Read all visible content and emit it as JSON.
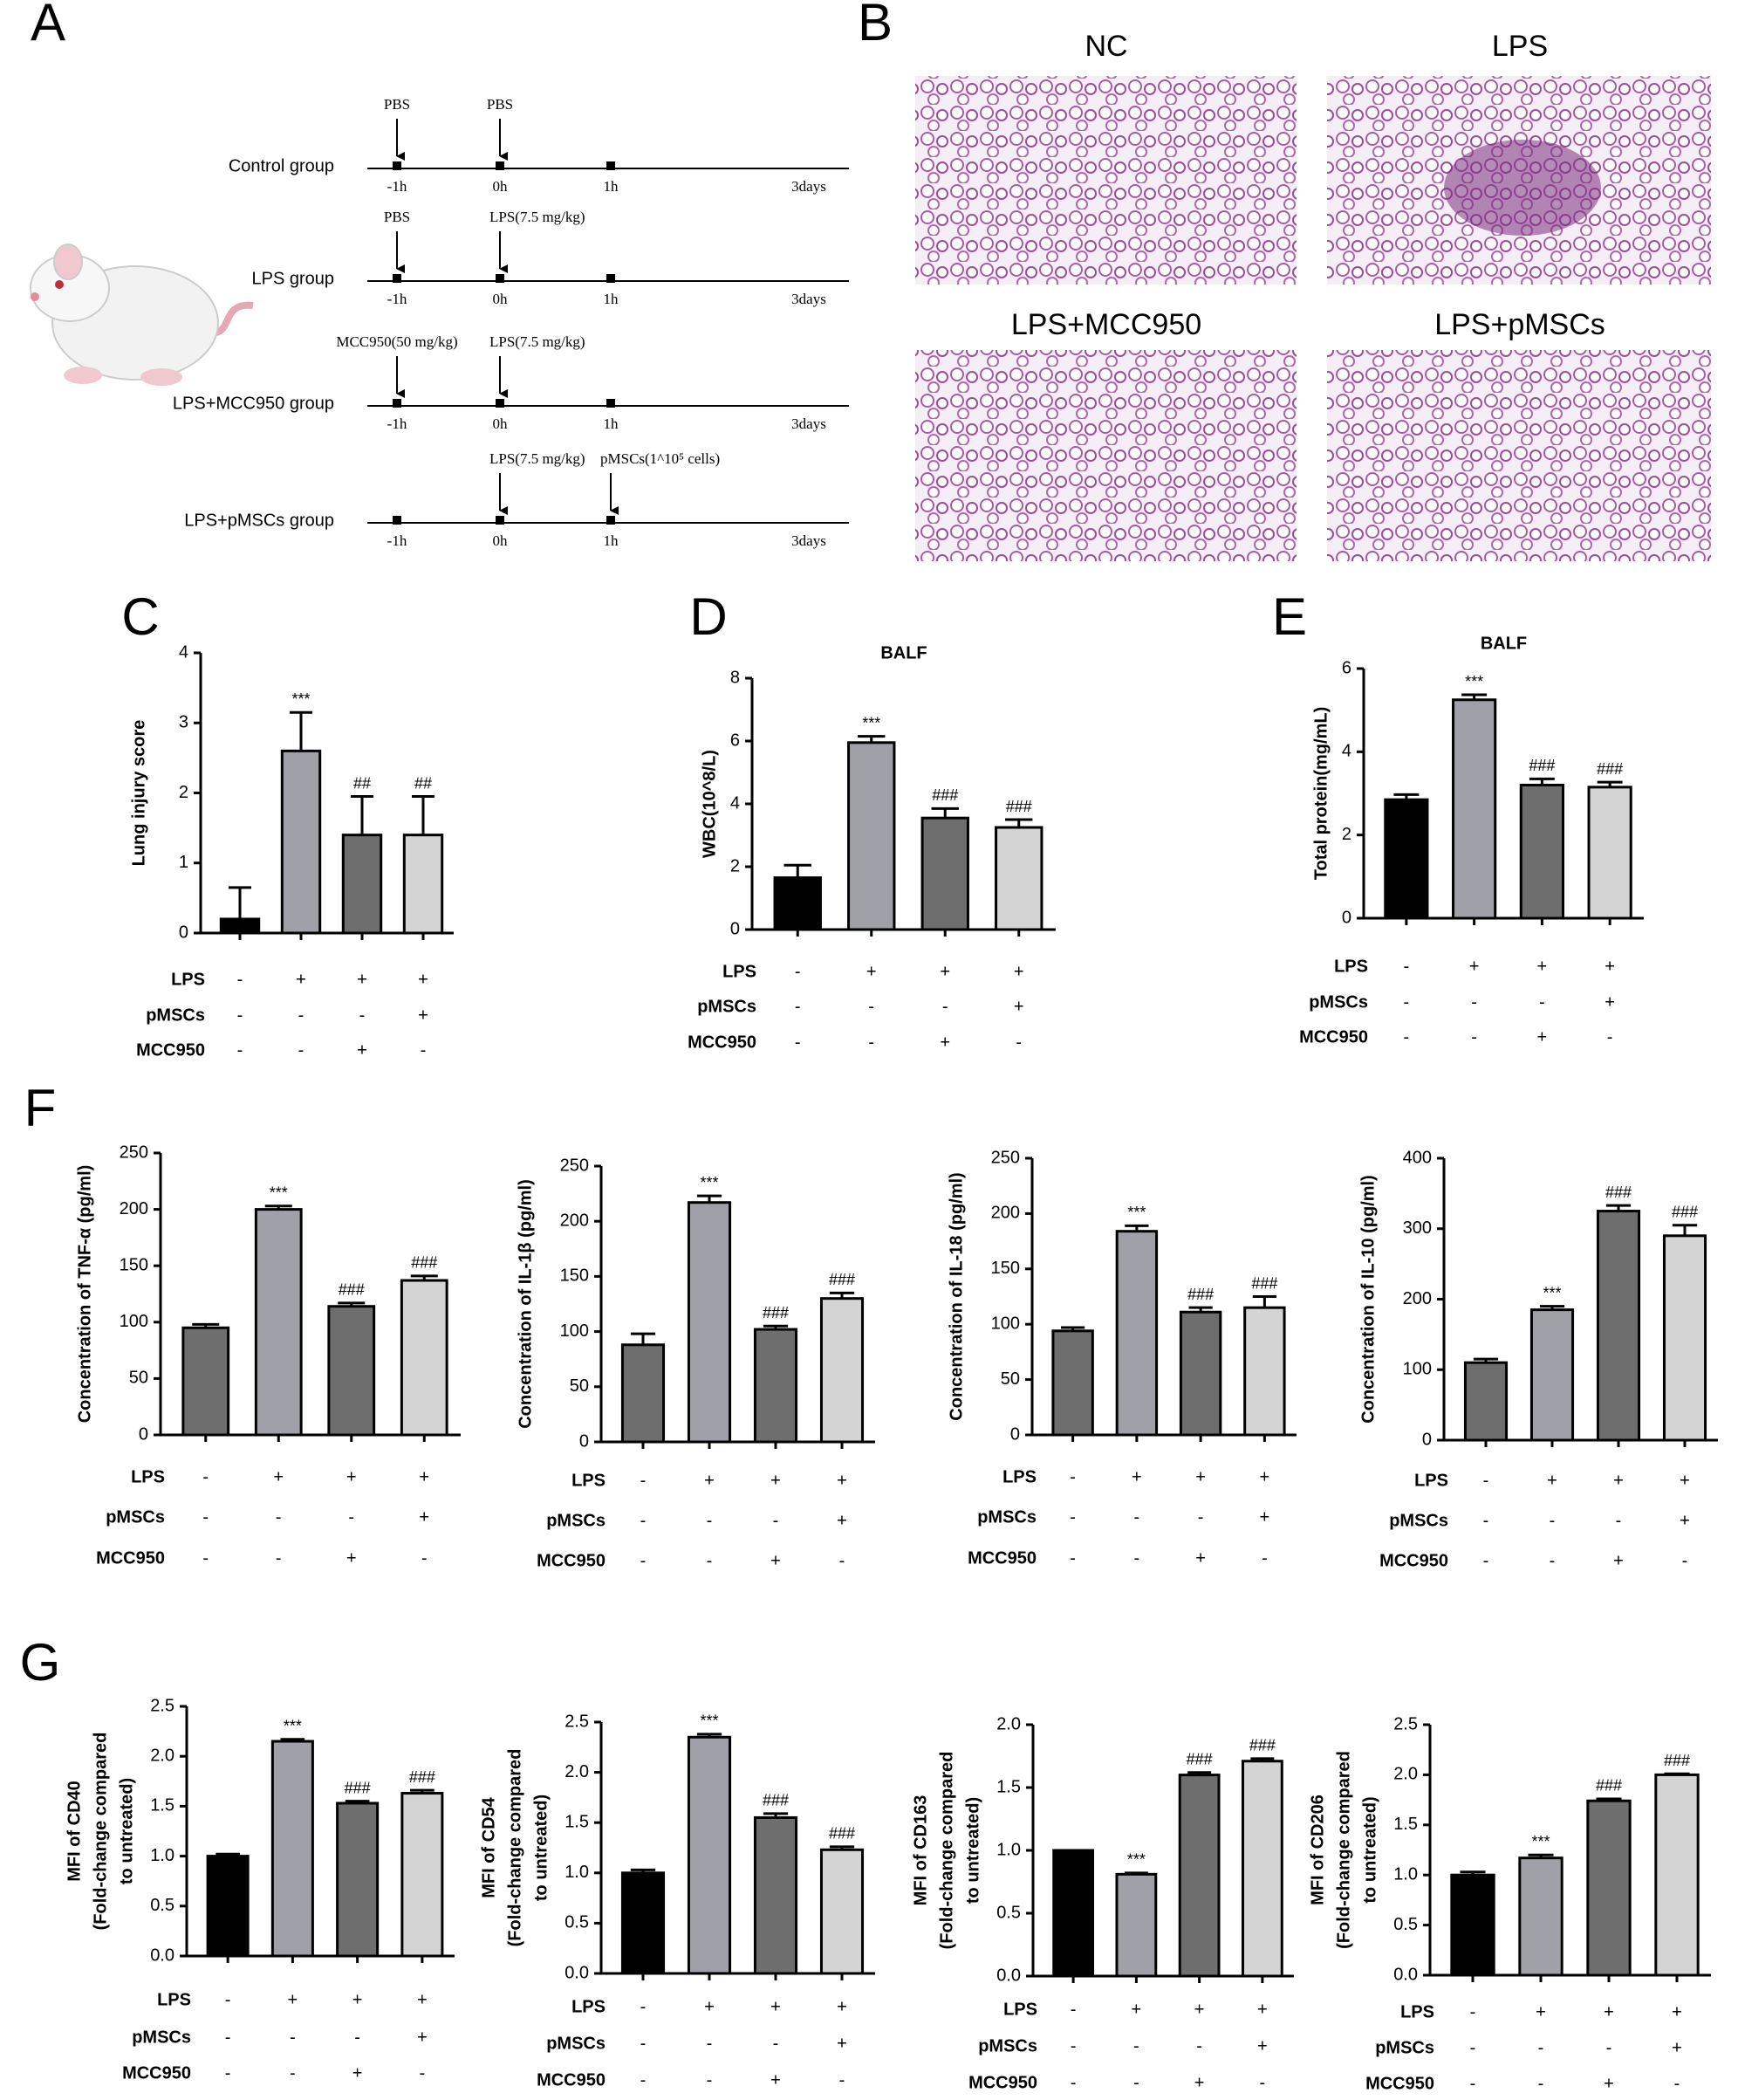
{
  "panel_labels": [
    "A",
    "B",
    "C",
    "D",
    "E",
    "F",
    "G"
  ],
  "timeline": {
    "times": [
      "-1h",
      "0h",
      "1h",
      "3days"
    ],
    "groups": [
      {
        "label": "Control group",
        "doses": [
          "PBS",
          "PBS",
          null
        ]
      },
      {
        "label": "LPS group",
        "doses": [
          "PBS",
          "LPS(7.5 mg/kg)",
          null
        ]
      },
      {
        "label": "LPS+MCC950 group",
        "doses": [
          "MCC950(50 mg/kg)",
          "LPS(7.5 mg/kg)",
          null
        ]
      },
      {
        "label": "LPS+pMSCs group",
        "doses": [
          null,
          "LPS(7.5 mg/kg)",
          "pMSCs(1^10⁵ cells)"
        ]
      }
    ]
  },
  "histology": {
    "panels": [
      "NC",
      "LPS",
      "LPS+MCC950",
      "LPS+pMSCs"
    ]
  },
  "chart_data": [
    {
      "type": "bar",
      "ylabel": [
        "Lung injury score"
      ],
      "values": [
        0.2,
        2.6,
        1.4,
        1.4
      ],
      "errors": [
        0.45,
        0.55,
        0.55,
        0.55
      ],
      "annotations": [
        null,
        "***",
        "##",
        "##"
      ],
      "colors": [
        "#000000",
        "#a0a0a8",
        "#6e6e6e",
        "#d4d4d4"
      ],
      "ylim": [
        0,
        4
      ],
      "yticks": [
        0,
        1,
        2,
        3,
        4
      ],
      "treatments": [
        {
          "name": "LPS",
          "marks": [
            "-",
            "+",
            "+",
            "+"
          ]
        },
        {
          "name": "pMSCs",
          "marks": [
            "-",
            "-",
            "-",
            "+"
          ]
        },
        {
          "name": "MCC950",
          "marks": [
            "-",
            "-",
            "+",
            "-"
          ]
        }
      ]
    },
    {
      "type": "bar",
      "title": "BALF",
      "ylabel": [
        "WBC(10^8/L)"
      ],
      "values": [
        1.65,
        5.95,
        3.55,
        3.25
      ],
      "errors": [
        0.4,
        0.2,
        0.3,
        0.25
      ],
      "annotations": [
        null,
        "***",
        "###",
        "###"
      ],
      "colors": [
        "#000000",
        "#a0a0a8",
        "#6e6e6e",
        "#d4d4d4"
      ],
      "ylim": [
        0,
        8
      ],
      "yticks": [
        0,
        2,
        4,
        6,
        8
      ],
      "treatments": [
        {
          "name": "LPS",
          "marks": [
            "-",
            "+",
            "+",
            "+"
          ]
        },
        {
          "name": "pMSCs",
          "marks": [
            "-",
            "-",
            "-",
            "+"
          ]
        },
        {
          "name": "MCC950",
          "marks": [
            "-",
            "-",
            "+",
            "-"
          ]
        }
      ]
    },
    {
      "type": "bar",
      "title": "BALF",
      "ylabel": [
        "Total protein(mg/mL)"
      ],
      "values": [
        2.85,
        5.25,
        3.2,
        3.15
      ],
      "errors": [
        0.12,
        0.12,
        0.15,
        0.12
      ],
      "annotations": [
        null,
        "***",
        "###",
        "###"
      ],
      "colors": [
        "#000000",
        "#a0a0a8",
        "#6e6e6e",
        "#d4d4d4"
      ],
      "ylim": [
        0,
        6
      ],
      "yticks": [
        0,
        2,
        4,
        6
      ],
      "treatments": [
        {
          "name": "LPS",
          "marks": [
            "-",
            "+",
            "+",
            "+"
          ]
        },
        {
          "name": "pMSCs",
          "marks": [
            "-",
            "-",
            "-",
            "+"
          ]
        },
        {
          "name": "MCC950",
          "marks": [
            "-",
            "-",
            "+",
            "-"
          ]
        }
      ]
    },
    {
      "type": "bar",
      "ylabel": [
        "Concentration of TNF-α (pg/ml)"
      ],
      "values": [
        95,
        200,
        114,
        137
      ],
      "errors": [
        3,
        3,
        3,
        4
      ],
      "annotations": [
        null,
        "***",
        "###",
        "###"
      ],
      "colors": [
        "#6e6e6e",
        "#a0a0a8",
        "#6e6e6e",
        "#d4d4d4"
      ],
      "ylim": [
        0,
        250
      ],
      "yticks": [
        0,
        50,
        100,
        150,
        200,
        250
      ],
      "treatments": [
        {
          "name": "LPS",
          "marks": [
            "-",
            "+",
            "+",
            "+"
          ]
        },
        {
          "name": "pMSCs",
          "marks": [
            "-",
            "-",
            "-",
            "+"
          ]
        },
        {
          "name": "MCC950",
          "marks": [
            "-",
            "-",
            "+",
            "-"
          ]
        }
      ]
    },
    {
      "type": "bar",
      "ylabel": [
        "Concentration of IL-1β (pg/ml)"
      ],
      "values": [
        88,
        217,
        102,
        130
      ],
      "errors": [
        10,
        6,
        3,
        5
      ],
      "annotations": [
        null,
        "***",
        "###",
        "###"
      ],
      "colors": [
        "#6e6e6e",
        "#a0a0a8",
        "#6e6e6e",
        "#d4d4d4"
      ],
      "ylim": [
        0,
        250
      ],
      "yticks": [
        0,
        50,
        100,
        150,
        200,
        250
      ],
      "treatments": [
        {
          "name": "LPS",
          "marks": [
            "-",
            "+",
            "+",
            "+"
          ]
        },
        {
          "name": "pMSCs",
          "marks": [
            "-",
            "-",
            "-",
            "+"
          ]
        },
        {
          "name": "MCC950",
          "marks": [
            "-",
            "-",
            "+",
            "-"
          ]
        }
      ]
    },
    {
      "type": "bar",
      "ylabel": [
        "Concentration of IL-18 (pg/ml)"
      ],
      "values": [
        94,
        184,
        111,
        115
      ],
      "errors": [
        3,
        5,
        4,
        10
      ],
      "annotations": [
        null,
        "***",
        "###",
        "###"
      ],
      "colors": [
        "#6e6e6e",
        "#a0a0a8",
        "#6e6e6e",
        "#d4d4d4"
      ],
      "ylim": [
        0,
        250
      ],
      "yticks": [
        0,
        50,
        100,
        150,
        200,
        250
      ],
      "treatments": [
        {
          "name": "LPS",
          "marks": [
            "-",
            "+",
            "+",
            "+"
          ]
        },
        {
          "name": "pMSCs",
          "marks": [
            "-",
            "-",
            "-",
            "+"
          ]
        },
        {
          "name": "MCC950",
          "marks": [
            "-",
            "-",
            "+",
            "-"
          ]
        }
      ]
    },
    {
      "type": "bar",
      "ylabel": [
        "Concentration of IL-10 (pg/ml)"
      ],
      "values": [
        110,
        185,
        325,
        290
      ],
      "errors": [
        5,
        5,
        8,
        15
      ],
      "annotations": [
        null,
        "***",
        "###",
        "###"
      ],
      "colors": [
        "#6e6e6e",
        "#a0a0a8",
        "#6e6e6e",
        "#d4d4d4"
      ],
      "ylim": [
        0,
        400
      ],
      "yticks": [
        0,
        100,
        200,
        300,
        400
      ],
      "treatments": [
        {
          "name": "LPS",
          "marks": [
            "-",
            "+",
            "+",
            "+"
          ]
        },
        {
          "name": "pMSCs",
          "marks": [
            "-",
            "-",
            "-",
            "+"
          ]
        },
        {
          "name": "MCC950",
          "marks": [
            "-",
            "-",
            "+",
            "-"
          ]
        }
      ]
    },
    {
      "type": "bar",
      "ylabel": [
        "MFI of CD40",
        "(Fold-change compared",
        "to untreated)"
      ],
      "values": [
        1.0,
        2.15,
        1.53,
        1.63
      ],
      "errors": [
        0.02,
        0.02,
        0.02,
        0.03
      ],
      "annotations": [
        null,
        "***",
        "###",
        "###"
      ],
      "colors": [
        "#000000",
        "#a0a0a8",
        "#6e6e6e",
        "#d4d4d4"
      ],
      "ylim": [
        0,
        2.5
      ],
      "yticks": [
        {
          "value": 0,
          "label": "0.0"
        },
        0.5,
        {
          "value": 1,
          "label": "1.0"
        },
        1.5,
        {
          "value": 2,
          "label": "2.0"
        },
        2.5
      ],
      "treatments": [
        {
          "name": "LPS",
          "marks": [
            "-",
            "+",
            "+",
            "+"
          ]
        },
        {
          "name": "pMSCs",
          "marks": [
            "-",
            "-",
            "-",
            "+"
          ]
        },
        {
          "name": "MCC950",
          "marks": [
            "-",
            "-",
            "+",
            "-"
          ]
        }
      ]
    },
    {
      "type": "bar",
      "ylabel": [
        "MFI of CD54",
        "(Fold-change compared",
        "to untreated)"
      ],
      "values": [
        1.0,
        2.35,
        1.55,
        1.23
      ],
      "errors": [
        0.03,
        0.03,
        0.04,
        0.03
      ],
      "annotations": [
        null,
        "***",
        "###",
        "###"
      ],
      "colors": [
        "#000000",
        "#a0a0a8",
        "#6e6e6e",
        "#d4d4d4"
      ],
      "ylim": [
        0,
        2.5
      ],
      "yticks": [
        {
          "value": 0,
          "label": "0.0"
        },
        0.5,
        {
          "value": 1,
          "label": "1.0"
        },
        1.5,
        {
          "value": 2,
          "label": "2.0"
        },
        2.5
      ],
      "treatments": [
        {
          "name": "LPS",
          "marks": [
            "-",
            "+",
            "+",
            "+"
          ]
        },
        {
          "name": "pMSCs",
          "marks": [
            "-",
            "-",
            "-",
            "+"
          ]
        },
        {
          "name": "MCC950",
          "marks": [
            "-",
            "-",
            "+",
            "-"
          ]
        }
      ]
    },
    {
      "type": "bar",
      "ylabel": [
        "MFI of CD163",
        "(Fold-change compared",
        "to untreated)"
      ],
      "values": [
        1.0,
        0.81,
        1.6,
        1.71
      ],
      "errors": [
        0,
        0.01,
        0.02,
        0.02
      ],
      "annotations": [
        null,
        "***",
        "###",
        "###"
      ],
      "colors": [
        "#000000",
        "#a0a0a8",
        "#6e6e6e",
        "#d4d4d4"
      ],
      "ylim": [
        0,
        2
      ],
      "yticks": [
        {
          "value": 0,
          "label": "0.0"
        },
        0.5,
        {
          "value": 1,
          "label": "1.0"
        },
        1.5,
        {
          "value": 2,
          "label": "2.0"
        }
      ],
      "treatments": [
        {
          "name": "LPS",
          "marks": [
            "-",
            "+",
            "+",
            "+"
          ]
        },
        {
          "name": "pMSCs",
          "marks": [
            "-",
            "-",
            "-",
            "+"
          ]
        },
        {
          "name": "MCC950",
          "marks": [
            "-",
            "-",
            "+",
            "-"
          ]
        }
      ]
    },
    {
      "type": "bar",
      "ylabel": [
        "MFI of CD206",
        "(Fold-change compared",
        "to untreated)"
      ],
      "values": [
        1.0,
        1.17,
        1.74,
        2.0
      ],
      "errors": [
        0.03,
        0.03,
        0.02,
        0.01
      ],
      "annotations": [
        null,
        "***",
        "###",
        "###"
      ],
      "colors": [
        "#000000",
        "#a0a0a8",
        "#6e6e6e",
        "#d4d4d4"
      ],
      "ylim": [
        0,
        2.5
      ],
      "yticks": [
        {
          "value": 0,
          "label": "0.0"
        },
        0.5,
        {
          "value": 1,
          "label": "1.0"
        },
        1.5,
        {
          "value": 2,
          "label": "2.0"
        },
        2.5
      ],
      "treatments": [
        {
          "name": "LPS",
          "marks": [
            "-",
            "+",
            "+",
            "+"
          ]
        },
        {
          "name": "pMSCs",
          "marks": [
            "-",
            "-",
            "-",
            "+"
          ]
        },
        {
          "name": "MCC950",
          "marks": [
            "-",
            "-",
            "+",
            "-"
          ]
        }
      ]
    }
  ]
}
